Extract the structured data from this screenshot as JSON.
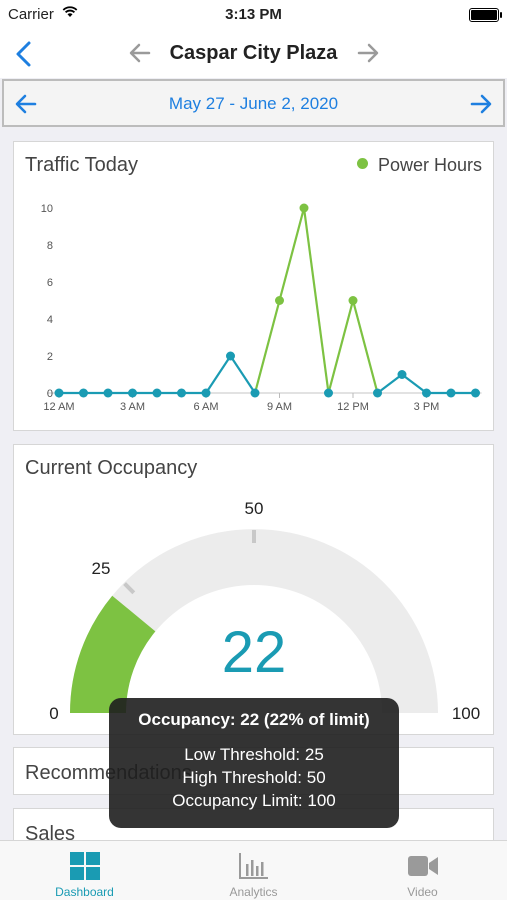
{
  "status_bar": {
    "carrier": "Carrier",
    "time": "3:13 PM"
  },
  "nav": {
    "title": "Caspar City Plaza"
  },
  "date_range": {
    "label": "May 27 - June 2, 2020"
  },
  "traffic": {
    "title": "Traffic Today",
    "legend": "Power Hours",
    "colors": {
      "normal": "#1a9bb3",
      "power": "#7dc242"
    }
  },
  "chart_data": {
    "type": "line",
    "title": "Traffic Today",
    "x": [
      "12 AM",
      "1 AM",
      "2 AM",
      "3 AM",
      "4 AM",
      "5 AM",
      "6 AM",
      "7 AM",
      "8 AM",
      "9 AM",
      "10 AM",
      "11 AM",
      "12 PM",
      "1 PM",
      "2 PM",
      "3 PM",
      "4 PM",
      "5 PM"
    ],
    "xtick_labels": [
      "12 AM",
      "3 AM",
      "6 AM",
      "9 AM",
      "12 PM",
      "3 PM"
    ],
    "yticks": [
      0,
      2,
      4,
      6,
      8,
      10
    ],
    "ylim": [
      0,
      10
    ],
    "series": [
      {
        "name": "Power Hours",
        "values": [
          0,
          0,
          0,
          0,
          0,
          0,
          0,
          2,
          0,
          5,
          10,
          0,
          5,
          0,
          1,
          0,
          0,
          0
        ],
        "power_hours": [
          false,
          false,
          false,
          false,
          false,
          false,
          false,
          false,
          false,
          true,
          true,
          false,
          true,
          false,
          false,
          false,
          false,
          false
        ]
      }
    ],
    "legend": "top-right",
    "grid": false
  },
  "occupancy": {
    "title": "Current Occupancy",
    "value": "22",
    "value_num": 22,
    "max": 100,
    "labels": {
      "min": "0",
      "low": "25",
      "high": "50",
      "max": "100"
    },
    "colors": {
      "fill": "#7dc242",
      "track": "#ececec",
      "value": "#1a9bb3"
    }
  },
  "tooltip": {
    "header": "Occupancy: 22 (22% of limit)",
    "low": "Low Threshold: 25",
    "high": "High Threshold: 50",
    "limit": "Occupancy Limit: 100"
  },
  "cards": {
    "recommendations": "Recommendations",
    "sales": "Sales"
  },
  "tabs": [
    {
      "label": "Dashboard",
      "icon": "dashboard-icon"
    },
    {
      "label": "Analytics",
      "icon": "analytics-icon"
    },
    {
      "label": "Video",
      "icon": "video-icon"
    }
  ]
}
